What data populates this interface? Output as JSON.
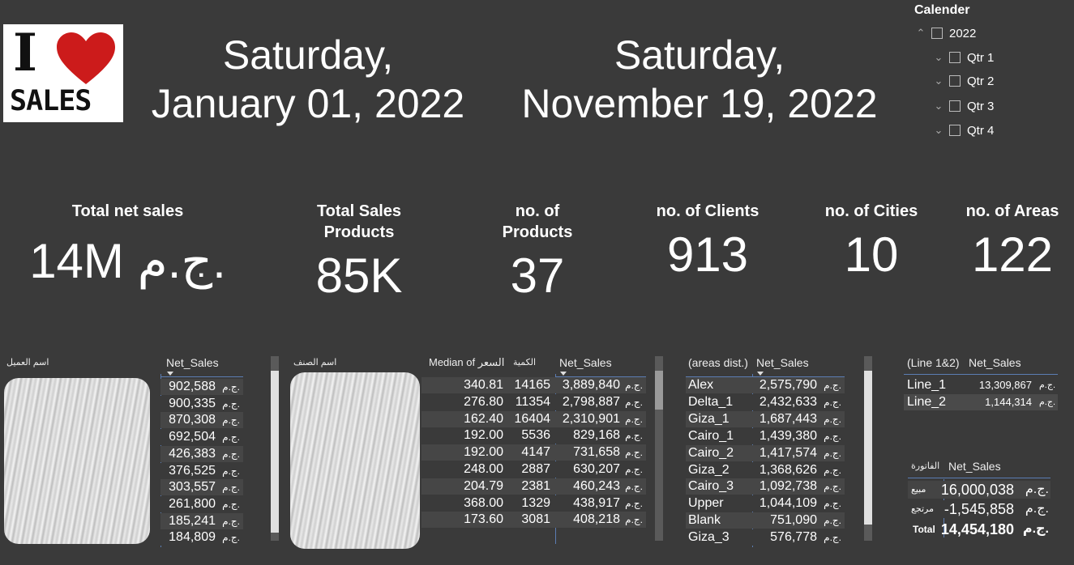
{
  "logo": {
    "letter": "I",
    "word": "SALES"
  },
  "dates": {
    "start": [
      "Saturday,",
      "January 01, 2022"
    ],
    "end": [
      "Saturday,",
      "November 19, 2022"
    ]
  },
  "calendar": {
    "title": "Calender",
    "year": "2022",
    "quarters": [
      "Qtr 1",
      "Qtr 2",
      "Qtr 3",
      "Qtr 4"
    ]
  },
  "kpis": [
    {
      "label": "Total net sales",
      "value": "14M ج.م."
    },
    {
      "label": "Total Sales Products",
      "value": "85K"
    },
    {
      "label": "no. of Products",
      "value": "37"
    },
    {
      "label": "no. of Clients",
      "value": "913"
    },
    {
      "label": "no. of Cities",
      "value": "10"
    },
    {
      "label": "no. of Areas",
      "value": "122"
    }
  ],
  "clients_table": {
    "headers": {
      "name": "اسم العميل",
      "sales": "Net_Sales"
    },
    "currency": "ج.م.",
    "rows": [
      "902,588",
      "900,335",
      "870,308",
      "692,504",
      "426,383",
      "376,525",
      "303,557",
      "261,800",
      "185,241",
      "184,809"
    ]
  },
  "products_table": {
    "headers": {
      "name": "اسم الصنف",
      "median": "Median of السعر",
      "qty": "الكمية",
      "sales": "Net_Sales"
    },
    "currency": "ج.م.",
    "rows": [
      {
        "median": "340.81",
        "qty": "14165",
        "sales": "3,889,840"
      },
      {
        "median": "276.80",
        "qty": "11354",
        "sales": "2,798,887"
      },
      {
        "median": "162.40",
        "qty": "16404",
        "sales": "2,310,901"
      },
      {
        "median": "192.00",
        "qty": "5536",
        "sales": "829,168"
      },
      {
        "median": "192.00",
        "qty": "4147",
        "sales": "731,658"
      },
      {
        "median": "248.00",
        "qty": "2887",
        "sales": "630,207"
      },
      {
        "median": "204.79",
        "qty": "2381",
        "sales": "460,243"
      },
      {
        "median": "368.00",
        "qty": "1329",
        "sales": "438,917"
      },
      {
        "median": "173.60",
        "qty": "3081",
        "sales": "408,218"
      }
    ]
  },
  "areas_table": {
    "headers": {
      "name": "(areas dist.)",
      "sales": "Net_Sales"
    },
    "currency": "ج.م.",
    "rows": [
      {
        "name": "Alex",
        "sales": "2,575,790"
      },
      {
        "name": "Delta_1",
        "sales": "2,432,633"
      },
      {
        "name": "Giza_1",
        "sales": "1,687,443"
      },
      {
        "name": "Cairo_1",
        "sales": "1,439,380"
      },
      {
        "name": "Cairo_2",
        "sales": "1,417,574"
      },
      {
        "name": "Giza_2",
        "sales": "1,368,626"
      },
      {
        "name": "Cairo_3",
        "sales": "1,092,738"
      },
      {
        "name": "Upper",
        "sales": "1,044,109"
      },
      {
        "name": "Blank",
        "sales": "751,090"
      },
      {
        "name": "Giza_3",
        "sales": "576,778"
      }
    ]
  },
  "lines_table": {
    "headers": {
      "name": "(Line 1&2)",
      "sales": "Net_Sales"
    },
    "currency": "ج.م.",
    "rows": [
      {
        "name": "Line_1",
        "sales": "13,309,867"
      },
      {
        "name": "Line_2",
        "sales": "1,144,314"
      }
    ]
  },
  "invoice_table": {
    "headers": {
      "name": "الفاتورة",
      "sales": "Net_Sales"
    },
    "currency": "ج.م.",
    "rows": [
      {
        "name": "مبيع",
        "sales": "16,000,038"
      },
      {
        "name": "مرتجع",
        "sales": "-1,545,858"
      }
    ],
    "total": {
      "name": "Total",
      "sales": "14,454,180"
    }
  }
}
